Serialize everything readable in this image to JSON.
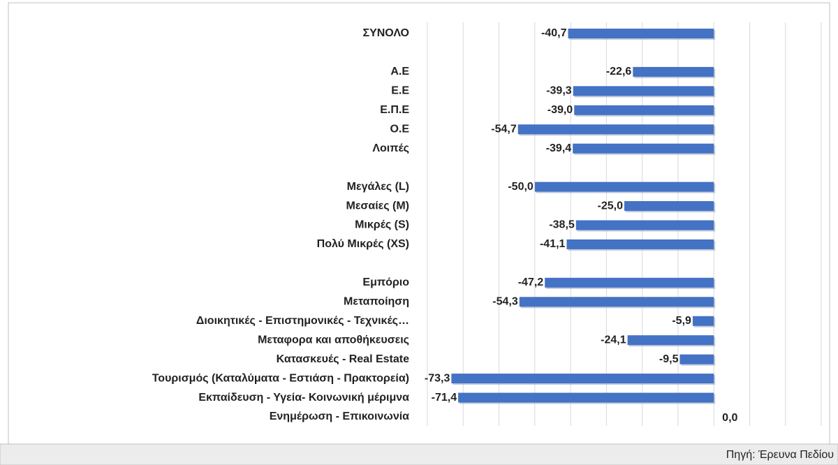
{
  "chart_data": {
    "type": "bar",
    "orientation": "horizontal",
    "categories": [
      "ΣΥΝΟΛΟ",
      null,
      "Α.Ε",
      "Ε.Ε",
      "Ε.Π.Ε",
      "Ο.Ε",
      "Λοιπές",
      null,
      "Μεγάλες (L)",
      "Μεσαίες (M)",
      "Μικρές (S)",
      "Πολύ Μικρές (XS)",
      null,
      "Εμπόριο",
      "Μεταποίηση",
      "Διοικητικές - Επιστημονικές - Τεχνικές…",
      "Μεταφορα και αποθήκευσεις",
      "Κατασκευές - Real Estate",
      "Τουρισμός (Καταλύματα - Εστιάση - Πρακτορεία)",
      "Εκπαίδευση - Υγεία- Κοινωνική μέριμνα",
      "Ενημέρωση - Επικοινωνία"
    ],
    "values": [
      -40.7,
      null,
      -22.6,
      -39.3,
      -39.0,
      -54.7,
      -39.4,
      null,
      -50.0,
      -25.0,
      -38.5,
      -41.1,
      null,
      -47.2,
      -54.3,
      -5.9,
      -24.1,
      -9.5,
      -73.3,
      -71.4,
      0.0
    ],
    "value_labels": [
      "-40,7",
      null,
      "-22,6",
      "-39,3",
      "-39,0",
      "-54,7",
      "-39,4",
      null,
      "-50,0",
      "-25,0",
      "-38,5",
      "-41,1",
      null,
      "-47,2",
      "-54,3",
      "-5,9",
      "-24,1",
      "-9,5",
      "-73,3",
      "-71,4",
      "0,0"
    ],
    "color": "#4472c4",
    "xlim": [
      -80,
      30
    ],
    "xticks": [
      -80,
      -70,
      -60,
      -50,
      -40,
      -30,
      -20,
      -10,
      0,
      10,
      20,
      30
    ],
    "grid": true,
    "source": "Πηγή: Έρευνα Πεδίου"
  }
}
